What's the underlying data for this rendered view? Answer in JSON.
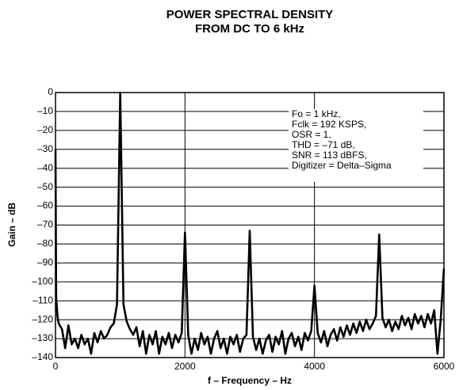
{
  "chart_data": {
    "type": "line",
    "title": [
      "POWER SPECTRAL DENSITY",
      "FROM DC TO 6 kHz"
    ],
    "x_label": "f – Frequency – Hz",
    "y_label": "Gain – dB",
    "annotations": [
      "Fo = 1 kHz,",
      "Fclk = 192 KSPS,",
      "OSR = 1,",
      "THD = –71 dB,",
      "SNR = 113 dBFS,",
      "Digitizer = Delta–Sigma"
    ],
    "x": [
      0,
      10,
      30,
      50,
      100,
      150,
      200,
      250,
      300,
      350,
      400,
      450,
      500,
      550,
      600,
      650,
      700,
      750,
      800,
      850,
      900,
      950,
      1000,
      1050,
      1100,
      1150,
      1200,
      1250,
      1300,
      1350,
      1400,
      1450,
      1500,
      1550,
      1600,
      1650,
      1700,
      1750,
      1800,
      1850,
      1900,
      1950,
      2000,
      2050,
      2100,
      2150,
      2200,
      2250,
      2300,
      2350,
      2400,
      2450,
      2500,
      2550,
      2600,
      2650,
      2700,
      2750,
      2800,
      2850,
      2900,
      2950,
      3000,
      3050,
      3100,
      3150,
      3200,
      3250,
      3300,
      3350,
      3400,
      3450,
      3500,
      3550,
      3600,
      3650,
      3700,
      3750,
      3800,
      3850,
      3900,
      3950,
      4000,
      4050,
      4100,
      4150,
      4200,
      4250,
      4300,
      4350,
      4400,
      4450,
      4500,
      4550,
      4600,
      4650,
      4700,
      4750,
      4800,
      4850,
      4900,
      4950,
      5000,
      5050,
      5100,
      5150,
      5200,
      5250,
      5300,
      5350,
      5400,
      5450,
      5500,
      5550,
      5600,
      5650,
      5700,
      5750,
      5800,
      5850,
      5900,
      5950,
      6000
    ],
    "series": [
      {
        "name": "PSD",
        "color": "#000000",
        "values": [
          -30,
          -108,
          -118,
          -122,
          -125,
          -135,
          -123,
          -133,
          -130,
          -135,
          -128,
          -133,
          -130,
          -138,
          -127,
          -132,
          -126,
          -130,
          -128,
          -124,
          -122,
          -112,
          0,
          -112,
          -121,
          -125,
          -128,
          -124,
          -134,
          -126,
          -138,
          -128,
          -133,
          -126,
          -138,
          -129,
          -133,
          -127,
          -135,
          -128,
          -132,
          -127,
          -74,
          -128,
          -138,
          -130,
          -136,
          -127,
          -133,
          -129,
          -138,
          -130,
          -126,
          -135,
          -130,
          -138,
          -129,
          -133,
          -128,
          -137,
          -130,
          -128,
          -73,
          -129,
          -136,
          -130,
          -138,
          -131,
          -128,
          -137,
          -129,
          -133,
          -126,
          -138,
          -130,
          -127,
          -134,
          -129,
          -136,
          -127,
          -131,
          -126,
          -102,
          -127,
          -132,
          -126,
          -134,
          -128,
          -125,
          -131,
          -124,
          -129,
          -123,
          -128,
          -122,
          -127,
          -121,
          -126,
          -120,
          -125,
          -122,
          -118,
          -75,
          -119,
          -124,
          -120,
          -126,
          -121,
          -125,
          -118,
          -123,
          -119,
          -125,
          -117,
          -122,
          -118,
          -124,
          -117,
          -122,
          -115,
          -138,
          -120,
          -93
        ]
      }
    ],
    "xlim": [
      0,
      6000
    ],
    "xticks": [
      0,
      2000,
      4000,
      6000
    ],
    "ylim": [
      -140,
      0
    ],
    "yticks": [
      0,
      {
        "value": -10,
        "label": "–10"
      },
      {
        "value": -20,
        "label": "–20"
      },
      {
        "value": -30,
        "label": "–30"
      },
      {
        "value": -40,
        "label": "–40"
      },
      {
        "value": -50,
        "label": "–50"
      },
      {
        "value": -60,
        "label": "–60"
      },
      {
        "value": -70,
        "label": "–70"
      },
      {
        "value": -80,
        "label": "–80"
      },
      {
        "value": -90,
        "label": "–90"
      },
      {
        "value": -100,
        "label": "–100"
      },
      {
        "value": -110,
        "label": "–110"
      },
      {
        "value": -120,
        "label": "–120"
      },
      {
        "value": -130,
        "label": "–130"
      },
      {
        "value": -140,
        "label": "–140"
      }
    ],
    "grid": true
  }
}
